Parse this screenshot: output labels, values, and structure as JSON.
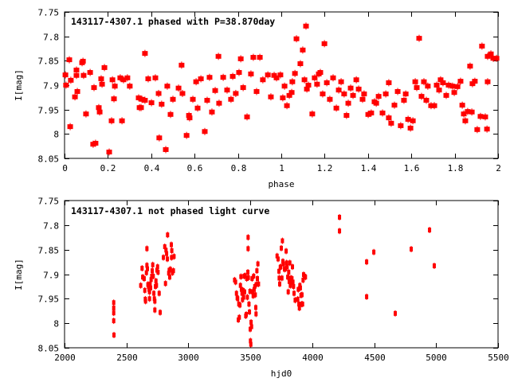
{
  "chart_data": [
    {
      "type": "scatter",
      "title": "143117-4307.1 phased with P=38.870day",
      "xlabel": "phase",
      "ylabel": "I[mag]",
      "xlim": [
        0,
        2
      ],
      "ylim": [
        7.75,
        8.05
      ],
      "y_inverted": true,
      "grid": false,
      "marker_color": "#ff0000",
      "xticks": [
        "0",
        "0.2",
        "0.4",
        "0.6",
        "0.8",
        "1",
        "1.2",
        "1.4",
        "1.6",
        "1.8",
        "2"
      ],
      "yticks": [
        "7.75",
        "7.8",
        "7.85",
        "7.9",
        "7.95",
        "8",
        "8.05"
      ],
      "points": [
        [
          0.004,
          7.879
        ],
        [
          0.007,
          7.9
        ],
        [
          0.022,
          7.848
        ],
        [
          0.026,
          7.985
        ],
        [
          0.029,
          7.89
        ],
        [
          0.048,
          7.924
        ],
        [
          0.055,
          7.88
        ],
        [
          0.055,
          7.869
        ],
        [
          0.059,
          7.913
        ],
        [
          0.081,
          7.854
        ],
        [
          0.085,
          7.851
        ],
        [
          0.088,
          7.88
        ],
        [
          0.099,
          7.959
        ],
        [
          0.118,
          7.874
        ],
        [
          0.132,
          8.021
        ],
        [
          0.136,
          7.905
        ],
        [
          0.143,
          8.019
        ],
        [
          0.158,
          7.946
        ],
        [
          0.162,
          7.955
        ],
        [
          0.169,
          7.887
        ],
        [
          0.173,
          7.898
        ],
        [
          0.184,
          7.864
        ],
        [
          0.206,
          8.037
        ],
        [
          0.217,
          7.973
        ],
        [
          0.221,
          7.889
        ],
        [
          0.228,
          7.928
        ],
        [
          0.232,
          7.902
        ],
        [
          0.257,
          7.885
        ],
        [
          0.265,
          7.973
        ],
        [
          0.272,
          7.889
        ],
        [
          0.29,
          7.885
        ],
        [
          0.301,
          7.902
        ],
        [
          0.342,
          7.926
        ],
        [
          0.346,
          7.946
        ],
        [
          0.353,
          7.946
        ],
        [
          0.357,
          7.929
        ],
        [
          0.371,
          7.835
        ],
        [
          0.371,
          7.931
        ],
        [
          0.386,
          7.887
        ],
        [
          0.401,
          7.936
        ],
        [
          0.419,
          7.885
        ],
        [
          0.434,
          7.917
        ],
        [
          0.437,
          8.008
        ],
        [
          0.448,
          7.939
        ],
        [
          0.467,
          8.032
        ],
        [
          0.474,
          7.902
        ],
        [
          0.489,
          7.96
        ],
        [
          0.5,
          7.929
        ],
        [
          0.526,
          7.906
        ],
        [
          0.54,
          7.859
        ],
        [
          0.544,
          7.917
        ],
        [
          0.563,
          8.003
        ],
        [
          0.574,
          7.962
        ],
        [
          0.577,
          7.967
        ],
        [
          0.592,
          7.929
        ],
        [
          0.607,
          7.893
        ],
        [
          0.614,
          7.947
        ],
        [
          0.629,
          7.887
        ],
        [
          0.647,
          7.995
        ],
        [
          0.658,
          7.931
        ],
        [
          0.669,
          7.884
        ],
        [
          0.68,
          7.955
        ],
        [
          0.695,
          7.911
        ],
        [
          0.71,
          7.841
        ],
        [
          0.713,
          7.937
        ],
        [
          0.732,
          7.884
        ],
        [
          0.75,
          7.91
        ],
        [
          0.768,
          7.929
        ],
        [
          0.776,
          7.882
        ],
        [
          0.79,
          7.917
        ],
        [
          0.805,
          7.874
        ],
        [
          0.813,
          7.846
        ],
        [
          0.824,
          7.905
        ],
        [
          0.842,
          7.965
        ],
        [
          0.86,
          7.877
        ],
        [
          0.871,
          7.843
        ],
        [
          0.886,
          7.913
        ],
        [
          0.901,
          7.843
        ],
        [
          0.915,
          7.889
        ],
        [
          0.938,
          7.879
        ],
        [
          0.952,
          7.924
        ],
        [
          0.967,
          7.88
        ],
        [
          0.978,
          7.885
        ],
        [
          0.996,
          7.879
        ],
        [
          1.007,
          7.926
        ],
        [
          1.015,
          7.902
        ],
        [
          1.026,
          7.942
        ],
        [
          1.037,
          7.921
        ],
        [
          1.048,
          7.915
        ],
        [
          1.051,
          7.893
        ],
        [
          1.063,
          7.876
        ],
        [
          1.07,
          7.805
        ],
        [
          1.088,
          7.856
        ],
        [
          1.099,
          7.828
        ],
        [
          1.107,
          7.889
        ],
        [
          1.114,
          7.779
        ],
        [
          1.118,
          7.908
        ],
        [
          1.125,
          7.9
        ],
        [
          1.143,
          7.959
        ],
        [
          1.154,
          7.885
        ],
        [
          1.165,
          7.898
        ],
        [
          1.173,
          7.877
        ],
        [
          1.18,
          7.874
        ],
        [
          1.191,
          7.918
        ],
        [
          1.199,
          7.815
        ],
        [
          1.21,
          7.895
        ],
        [
          1.224,
          7.929
        ],
        [
          1.239,
          7.885
        ],
        [
          1.254,
          7.947
        ],
        [
          1.265,
          7.91
        ],
        [
          1.276,
          7.893
        ],
        [
          1.29,
          7.918
        ],
        [
          1.301,
          7.962
        ],
        [
          1.309,
          7.937
        ],
        [
          1.32,
          7.906
        ],
        [
          1.331,
          7.921
        ],
        [
          1.346,
          7.889
        ],
        [
          1.357,
          7.908
        ],
        [
          1.375,
          7.929
        ],
        [
          1.382,
          7.918
        ],
        [
          1.401,
          7.96
        ],
        [
          1.415,
          7.957
        ],
        [
          1.43,
          7.934
        ],
        [
          1.438,
          7.937
        ],
        [
          1.449,
          7.923
        ],
        [
          1.467,
          7.957
        ],
        [
          1.482,
          7.918
        ],
        [
          1.496,
          7.895
        ],
        [
          1.496,
          7.967
        ],
        [
          1.507,
          7.978
        ],
        [
          1.522,
          7.941
        ],
        [
          1.537,
          7.913
        ],
        [
          1.551,
          7.983
        ],
        [
          1.566,
          7.931
        ],
        [
          1.574,
          7.918
        ],
        [
          1.585,
          7.97
        ],
        [
          1.596,
          7.988
        ],
        [
          1.607,
          7.973
        ],
        [
          1.618,
          7.893
        ],
        [
          1.625,
          7.905
        ],
        [
          1.636,
          7.804
        ],
        [
          1.647,
          7.923
        ],
        [
          1.658,
          7.893
        ],
        [
          1.669,
          7.931
        ],
        [
          1.676,
          7.902
        ],
        [
          1.691,
          7.942
        ],
        [
          1.706,
          7.942
        ],
        [
          1.717,
          7.9
        ],
        [
          1.728,
          7.91
        ],
        [
          1.735,
          7.889
        ],
        [
          1.746,
          7.895
        ],
        [
          1.761,
          7.921
        ],
        [
          1.772,
          7.9
        ],
        [
          1.79,
          7.902
        ],
        [
          1.798,
          7.915
        ],
        [
          1.813,
          7.903
        ],
        [
          1.827,
          7.892
        ],
        [
          1.835,
          7.941
        ],
        [
          1.842,
          7.959
        ],
        [
          1.849,
          7.973
        ],
        [
          1.86,
          7.954
        ],
        [
          1.871,
          7.861
        ],
        [
          1.879,
          7.955
        ],
        [
          1.882,
          7.897
        ],
        [
          1.893,
          7.892
        ],
        [
          1.904,
          7.991
        ],
        [
          1.919,
          7.964
        ],
        [
          1.926,
          7.82
        ],
        [
          1.941,
          7.965
        ],
        [
          1.949,
          7.99
        ],
        [
          1.952,
          7.841
        ],
        [
          1.952,
          7.893
        ],
        [
          1.967,
          7.836
        ],
        [
          1.978,
          7.845
        ],
        [
          1.993,
          7.845
        ]
      ]
    },
    {
      "type": "scatter",
      "title": "143117-4307.1 not phased light curve",
      "xlabel": "hjd0",
      "ylabel": "I[mag]",
      "xlim": [
        2000,
        5500
      ],
      "ylim": [
        7.75,
        8.05
      ],
      "y_inverted": true,
      "grid": false,
      "marker_color": "#ff0000",
      "xticks": [
        "2000",
        "2500",
        "3000",
        "3500",
        "4000",
        "4500",
        "5000",
        "5500"
      ],
      "yticks": [
        "7.75",
        "7.8",
        "7.85",
        "7.9",
        "7.95",
        "8",
        "8.05"
      ],
      "points": [
        [
          2397,
          7.958
        ],
        [
          2397,
          7.969
        ],
        [
          2397,
          7.979
        ],
        [
          2397,
          7.995
        ],
        [
          2399,
          8.024
        ],
        [
          2615,
          7.923
        ],
        [
          2626,
          7.888
        ],
        [
          2631,
          7.906
        ],
        [
          2643,
          7.909
        ],
        [
          2648,
          7.933
        ],
        [
          2652,
          7.951
        ],
        [
          2654,
          7.955
        ],
        [
          2661,
          7.897
        ],
        [
          2665,
          7.848
        ],
        [
          2665,
          7.882
        ],
        [
          2669,
          7.889
        ],
        [
          2673,
          7.921
        ],
        [
          2678,
          7.925
        ],
        [
          2682,
          7.931
        ],
        [
          2686,
          7.936
        ],
        [
          2686,
          7.95
        ],
        [
          2691,
          7.92
        ],
        [
          2695,
          7.928
        ],
        [
          2699,
          7.911
        ],
        [
          2704,
          7.904
        ],
        [
          2708,
          7.893
        ],
        [
          2712,
          7.881
        ],
        [
          2716,
          7.904
        ],
        [
          2721,
          7.939
        ],
        [
          2725,
          7.95
        ],
        [
          2729,
          7.955
        ],
        [
          2729,
          7.973
        ],
        [
          2734,
          7.925
        ],
        [
          2738,
          7.914
        ],
        [
          2742,
          7.923
        ],
        [
          2746,
          7.892
        ],
        [
          2751,
          7.885
        ],
        [
          2755,
          7.896
        ],
        [
          2764,
          7.939
        ],
        [
          2772,
          7.978
        ],
        [
          2798,
          7.866
        ],
        [
          2809,
          7.844
        ],
        [
          2815,
          7.919
        ],
        [
          2819,
          7.851
        ],
        [
          2824,
          7.858
        ],
        [
          2830,
          7.869
        ],
        [
          2832,
          7.82
        ],
        [
          2841,
          7.898
        ],
        [
          2845,
          7.892
        ],
        [
          2849,
          7.906
        ],
        [
          2854,
          7.89
        ],
        [
          2862,
          7.84
        ],
        [
          2864,
          7.866
        ],
        [
          2866,
          7.852
        ],
        [
          2871,
          7.897
        ],
        [
          2879,
          7.893
        ],
        [
          2884,
          7.864
        ],
        [
          3373,
          7.912
        ],
        [
          3381,
          7.916
        ],
        [
          3388,
          7.939
        ],
        [
          3394,
          7.948
        ],
        [
          3398,
          7.95
        ],
        [
          3403,
          7.993
        ],
        [
          3407,
          7.961
        ],
        [
          3411,
          7.988
        ],
        [
          3416,
          7.963
        ],
        [
          3420,
          7.923
        ],
        [
          3424,
          7.905
        ],
        [
          3428,
          7.931
        ],
        [
          3433,
          7.939
        ],
        [
          3437,
          7.952
        ],
        [
          3441,
          7.933
        ],
        [
          3446,
          7.947
        ],
        [
          3450,
          7.904
        ],
        [
          3454,
          7.936
        ],
        [
          3458,
          7.903
        ],
        [
          3463,
          7.985
        ],
        [
          3467,
          7.982
        ],
        [
          3471,
          7.909
        ],
        [
          3476,
          7.947
        ],
        [
          3480,
          7.896
        ],
        [
          3482,
          7.825
        ],
        [
          3482,
          7.848
        ],
        [
          3484,
          7.907
        ],
        [
          3489,
          7.961
        ],
        [
          3493,
          7.977
        ],
        [
          3497,
          7.935
        ],
        [
          3499,
          8.012
        ],
        [
          3501,
          8.036
        ],
        [
          3504,
          8.043
        ],
        [
          3506,
          7.998
        ],
        [
          3510,
          8.007
        ],
        [
          3514,
          7.909
        ],
        [
          3518,
          7.936
        ],
        [
          3523,
          7.944
        ],
        [
          3527,
          7.904
        ],
        [
          3531,
          7.931
        ],
        [
          3536,
          7.925
        ],
        [
          3540,
          7.942
        ],
        [
          3544,
          7.968
        ],
        [
          3546,
          7.981
        ],
        [
          3548,
          7.921
        ],
        [
          3553,
          7.893
        ],
        [
          3557,
          7.909
        ],
        [
          3561,
          7.879
        ],
        [
          3566,
          7.92
        ],
        [
          3716,
          7.863
        ],
        [
          3724,
          7.869
        ],
        [
          3731,
          7.894
        ],
        [
          3733,
          7.908
        ],
        [
          3737,
          7.92
        ],
        [
          3742,
          7.886
        ],
        [
          3746,
          7.885
        ],
        [
          3750,
          7.847
        ],
        [
          3755,
          7.908
        ],
        [
          3759,
          7.832
        ],
        [
          3763,
          7.874
        ],
        [
          3767,
          7.879
        ],
        [
          3776,
          7.89
        ],
        [
          3784,
          7.889
        ],
        [
          3789,
          7.853
        ],
        [
          3793,
          7.877
        ],
        [
          3797,
          7.885
        ],
        [
          3802,
          7.906
        ],
        [
          3806,
          7.936
        ],
        [
          3810,
          7.896
        ],
        [
          3814,
          7.915
        ],
        [
          3819,
          7.877
        ],
        [
          3823,
          7.923
        ],
        [
          3827,
          7.908
        ],
        [
          3832,
          7.916
        ],
        [
          3836,
          7.909
        ],
        [
          3840,
          7.885
        ],
        [
          3844,
          7.916
        ],
        [
          3849,
          7.925
        ],
        [
          3853,
          7.939
        ],
        [
          3862,
          7.953
        ],
        [
          3883,
          7.951
        ],
        [
          3887,
          7.931
        ],
        [
          3892,
          7.961
        ],
        [
          3896,
          7.969
        ],
        [
          3900,
          7.923
        ],
        [
          3904,
          7.928
        ],
        [
          3909,
          7.943
        ],
        [
          3913,
          7.961
        ],
        [
          3917,
          7.942
        ],
        [
          3922,
          7.961
        ],
        [
          3926,
          7.912
        ],
        [
          3930,
          7.901
        ],
        [
          3939,
          7.904
        ],
        [
          3945,
          7.906
        ],
        [
          4220,
          7.784
        ],
        [
          4220,
          7.812
        ],
        [
          4439,
          7.875
        ],
        [
          4497,
          7.855
        ],
        [
          4439,
          7.946
        ],
        [
          4670,
          7.98
        ],
        [
          4799,
          7.849
        ],
        [
          4947,
          7.81
        ],
        [
          4985,
          7.883
        ]
      ]
    }
  ]
}
